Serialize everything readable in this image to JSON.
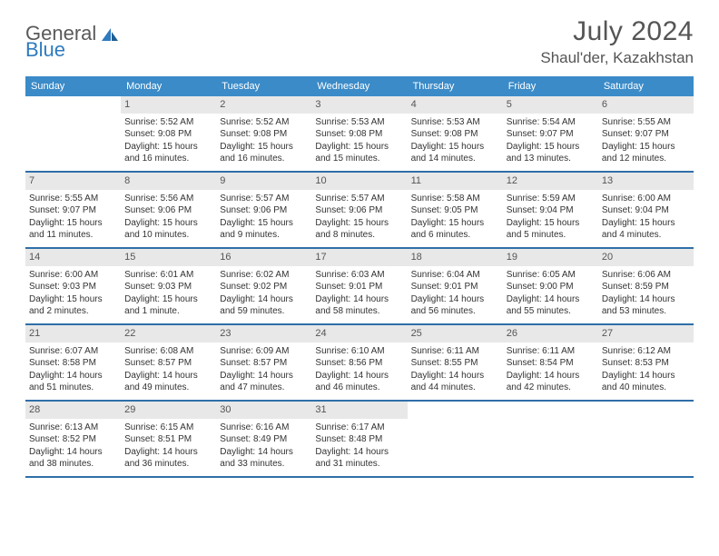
{
  "logo": {
    "text_general": "General",
    "text_blue": "Blue"
  },
  "title": "July 2024",
  "location": "Shaul'der, Kazakhstan",
  "colors": {
    "header_bg": "#3b8bc8",
    "header_text": "#ffffff",
    "divider": "#2f6fa8",
    "daynum_bg": "#e8e8e8",
    "body_text": "#333333",
    "title_text": "#555555",
    "logo_gray": "#5a5a5a",
    "logo_blue": "#2f7bbf"
  },
  "weekdays": [
    "Sunday",
    "Monday",
    "Tuesday",
    "Wednesday",
    "Thursday",
    "Friday",
    "Saturday"
  ],
  "weeks": [
    [
      null,
      {
        "n": "1",
        "sr": "Sunrise: 5:52 AM",
        "ss": "Sunset: 9:08 PM",
        "d1": "Daylight: 15 hours",
        "d2": "and 16 minutes."
      },
      {
        "n": "2",
        "sr": "Sunrise: 5:52 AM",
        "ss": "Sunset: 9:08 PM",
        "d1": "Daylight: 15 hours",
        "d2": "and 16 minutes."
      },
      {
        "n": "3",
        "sr": "Sunrise: 5:53 AM",
        "ss": "Sunset: 9:08 PM",
        "d1": "Daylight: 15 hours",
        "d2": "and 15 minutes."
      },
      {
        "n": "4",
        "sr": "Sunrise: 5:53 AM",
        "ss": "Sunset: 9:08 PM",
        "d1": "Daylight: 15 hours",
        "d2": "and 14 minutes."
      },
      {
        "n": "5",
        "sr": "Sunrise: 5:54 AM",
        "ss": "Sunset: 9:07 PM",
        "d1": "Daylight: 15 hours",
        "d2": "and 13 minutes."
      },
      {
        "n": "6",
        "sr": "Sunrise: 5:55 AM",
        "ss": "Sunset: 9:07 PM",
        "d1": "Daylight: 15 hours",
        "d2": "and 12 minutes."
      }
    ],
    [
      {
        "n": "7",
        "sr": "Sunrise: 5:55 AM",
        "ss": "Sunset: 9:07 PM",
        "d1": "Daylight: 15 hours",
        "d2": "and 11 minutes."
      },
      {
        "n": "8",
        "sr": "Sunrise: 5:56 AM",
        "ss": "Sunset: 9:06 PM",
        "d1": "Daylight: 15 hours",
        "d2": "and 10 minutes."
      },
      {
        "n": "9",
        "sr": "Sunrise: 5:57 AM",
        "ss": "Sunset: 9:06 PM",
        "d1": "Daylight: 15 hours",
        "d2": "and 9 minutes."
      },
      {
        "n": "10",
        "sr": "Sunrise: 5:57 AM",
        "ss": "Sunset: 9:06 PM",
        "d1": "Daylight: 15 hours",
        "d2": "and 8 minutes."
      },
      {
        "n": "11",
        "sr": "Sunrise: 5:58 AM",
        "ss": "Sunset: 9:05 PM",
        "d1": "Daylight: 15 hours",
        "d2": "and 6 minutes."
      },
      {
        "n": "12",
        "sr": "Sunrise: 5:59 AM",
        "ss": "Sunset: 9:04 PM",
        "d1": "Daylight: 15 hours",
        "d2": "and 5 minutes."
      },
      {
        "n": "13",
        "sr": "Sunrise: 6:00 AM",
        "ss": "Sunset: 9:04 PM",
        "d1": "Daylight: 15 hours",
        "d2": "and 4 minutes."
      }
    ],
    [
      {
        "n": "14",
        "sr": "Sunrise: 6:00 AM",
        "ss": "Sunset: 9:03 PM",
        "d1": "Daylight: 15 hours",
        "d2": "and 2 minutes."
      },
      {
        "n": "15",
        "sr": "Sunrise: 6:01 AM",
        "ss": "Sunset: 9:03 PM",
        "d1": "Daylight: 15 hours",
        "d2": "and 1 minute."
      },
      {
        "n": "16",
        "sr": "Sunrise: 6:02 AM",
        "ss": "Sunset: 9:02 PM",
        "d1": "Daylight: 14 hours",
        "d2": "and 59 minutes."
      },
      {
        "n": "17",
        "sr": "Sunrise: 6:03 AM",
        "ss": "Sunset: 9:01 PM",
        "d1": "Daylight: 14 hours",
        "d2": "and 58 minutes."
      },
      {
        "n": "18",
        "sr": "Sunrise: 6:04 AM",
        "ss": "Sunset: 9:01 PM",
        "d1": "Daylight: 14 hours",
        "d2": "and 56 minutes."
      },
      {
        "n": "19",
        "sr": "Sunrise: 6:05 AM",
        "ss": "Sunset: 9:00 PM",
        "d1": "Daylight: 14 hours",
        "d2": "and 55 minutes."
      },
      {
        "n": "20",
        "sr": "Sunrise: 6:06 AM",
        "ss": "Sunset: 8:59 PM",
        "d1": "Daylight: 14 hours",
        "d2": "and 53 minutes."
      }
    ],
    [
      {
        "n": "21",
        "sr": "Sunrise: 6:07 AM",
        "ss": "Sunset: 8:58 PM",
        "d1": "Daylight: 14 hours",
        "d2": "and 51 minutes."
      },
      {
        "n": "22",
        "sr": "Sunrise: 6:08 AM",
        "ss": "Sunset: 8:57 PM",
        "d1": "Daylight: 14 hours",
        "d2": "and 49 minutes."
      },
      {
        "n": "23",
        "sr": "Sunrise: 6:09 AM",
        "ss": "Sunset: 8:57 PM",
        "d1": "Daylight: 14 hours",
        "d2": "and 47 minutes."
      },
      {
        "n": "24",
        "sr": "Sunrise: 6:10 AM",
        "ss": "Sunset: 8:56 PM",
        "d1": "Daylight: 14 hours",
        "d2": "and 46 minutes."
      },
      {
        "n": "25",
        "sr": "Sunrise: 6:11 AM",
        "ss": "Sunset: 8:55 PM",
        "d1": "Daylight: 14 hours",
        "d2": "and 44 minutes."
      },
      {
        "n": "26",
        "sr": "Sunrise: 6:11 AM",
        "ss": "Sunset: 8:54 PM",
        "d1": "Daylight: 14 hours",
        "d2": "and 42 minutes."
      },
      {
        "n": "27",
        "sr": "Sunrise: 6:12 AM",
        "ss": "Sunset: 8:53 PM",
        "d1": "Daylight: 14 hours",
        "d2": "and 40 minutes."
      }
    ],
    [
      {
        "n": "28",
        "sr": "Sunrise: 6:13 AM",
        "ss": "Sunset: 8:52 PM",
        "d1": "Daylight: 14 hours",
        "d2": "and 38 minutes."
      },
      {
        "n": "29",
        "sr": "Sunrise: 6:15 AM",
        "ss": "Sunset: 8:51 PM",
        "d1": "Daylight: 14 hours",
        "d2": "and 36 minutes."
      },
      {
        "n": "30",
        "sr": "Sunrise: 6:16 AM",
        "ss": "Sunset: 8:49 PM",
        "d1": "Daylight: 14 hours",
        "d2": "and 33 minutes."
      },
      {
        "n": "31",
        "sr": "Sunrise: 6:17 AM",
        "ss": "Sunset: 8:48 PM",
        "d1": "Daylight: 14 hours",
        "d2": "and 31 minutes."
      },
      null,
      null,
      null
    ]
  ]
}
